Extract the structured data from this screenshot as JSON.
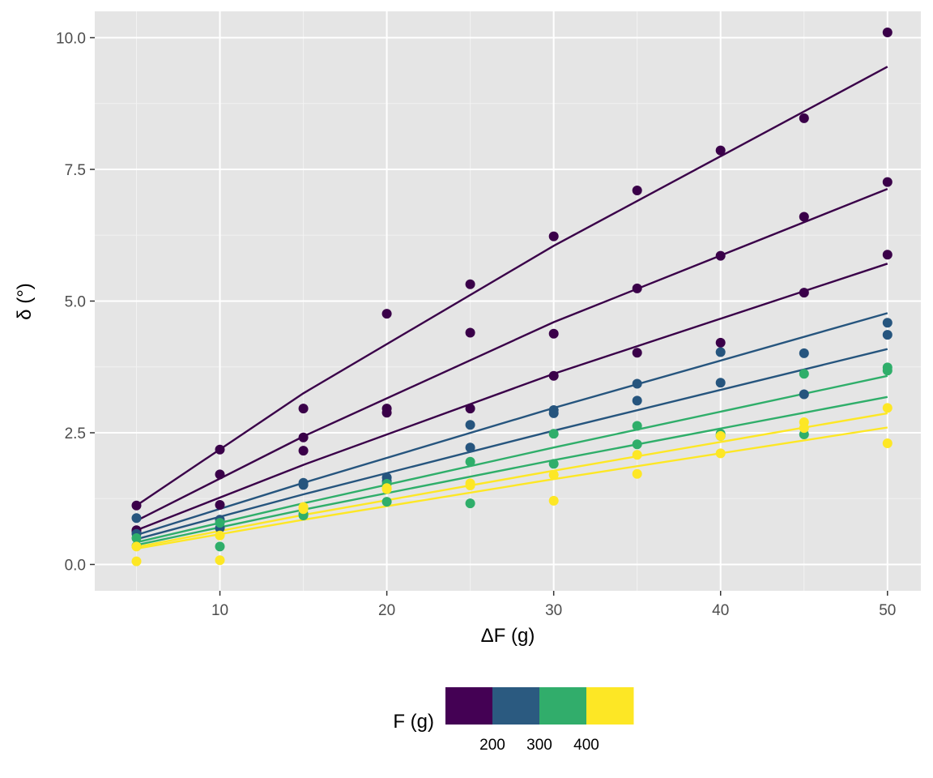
{
  "chart_data": {
    "type": "scatter",
    "xlabel": "ΔF (g)",
    "ylabel": "δ (°)",
    "xlim": [
      2.5,
      52
    ],
    "ylim": [
      -0.5,
      10.5
    ],
    "x_ticks": [
      10,
      20,
      30,
      40,
      50
    ],
    "y_ticks": [
      0.0,
      2.5,
      5.0,
      7.5,
      10.0
    ],
    "x_tick_labels": [
      "10",
      "20",
      "30",
      "40",
      "50"
    ],
    "y_tick_labels": [
      "0.0",
      "2.5",
      "5.0",
      "7.5",
      "10.0"
    ],
    "grid": true,
    "background": "#e5e5e5",
    "legend": {
      "position": "bottom",
      "title": "F (g)",
      "type": "colorbar-binned",
      "breaks": [
        "200",
        "300",
        "400"
      ],
      "colors": [
        "#440154",
        "#2b5a80",
        "#31ad6b",
        "#fde725"
      ]
    },
    "x": [
      5,
      10,
      15,
      20,
      25,
      30,
      35,
      40,
      45,
      50
    ],
    "series": [
      {
        "color": "#3a0049",
        "points": [
          1.12,
          2.18,
          2.96,
          4.76,
          5.32,
          6.23,
          7.1,
          7.86,
          8.47,
          10.1
        ],
        "fit": [
          [
            5,
            1.12
          ],
          [
            15,
            3.25
          ],
          [
            30,
            6.05
          ],
          [
            50,
            9.45
          ]
        ]
      },
      {
        "color": "#3a0049",
        "points": [
          0.63,
          1.71,
          2.41,
          2.96,
          4.4,
          4.38,
          5.24,
          5.86,
          6.6,
          7.26
        ],
        "fit": [
          [
            5,
            0.83
          ],
          [
            15,
            2.43
          ],
          [
            30,
            4.6
          ],
          [
            50,
            7.13
          ]
        ]
      },
      {
        "color": "#3a0049",
        "points": [
          0.65,
          1.13,
          2.16,
          2.88,
          2.96,
          3.58,
          4.02,
          4.21,
          5.16,
          5.88
        ],
        "fit": [
          [
            5,
            0.65
          ],
          [
            15,
            1.89
          ],
          [
            30,
            3.62
          ],
          [
            50,
            5.71
          ]
        ]
      },
      {
        "color": "#26557e",
        "points": [
          0.88,
          0.85,
          1.55,
          1.65,
          2.65,
          2.93,
          3.43,
          4.03,
          4.01,
          4.59
        ],
        "fit": [
          [
            5,
            0.56
          ],
          [
            15,
            1.55
          ],
          [
            30,
            2.97
          ],
          [
            50,
            4.77
          ]
        ]
      },
      {
        "color": "#26557e",
        "points": [
          0.58,
          0.69,
          1.51,
          1.58,
          2.22,
          2.87,
          3.11,
          3.45,
          3.23,
          4.36
        ],
        "fit": [
          [
            5,
            0.48
          ],
          [
            15,
            1.33
          ],
          [
            30,
            2.54
          ],
          [
            50,
            4.09
          ]
        ]
      },
      {
        "color": "#2fae6a",
        "points": [
          0.5,
          0.79,
          0.93,
          1.53,
          1.95,
          2.48,
          2.63,
          2.48,
          3.62,
          3.74
        ],
        "fit": [
          [
            5,
            0.42
          ],
          [
            15,
            1.16
          ],
          [
            30,
            2.22
          ],
          [
            50,
            3.58
          ]
        ]
      },
      {
        "color": "#2fae6a",
        "points": [
          0.35,
          0.34,
          0.96,
          1.19,
          1.16,
          1.91,
          2.28,
          2.44,
          2.47,
          3.68
        ],
        "fit": [
          [
            5,
            0.37
          ],
          [
            15,
            1.04
          ],
          [
            30,
            1.98
          ],
          [
            50,
            3.18
          ]
        ]
      },
      {
        "color": "#fde725",
        "points": [
          0.34,
          0.55,
          1.09,
          1.45,
          1.54,
          1.7,
          2.08,
          2.44,
          2.7,
          2.97
        ],
        "fit": [
          [
            5,
            0.33
          ],
          [
            15,
            0.94
          ],
          [
            30,
            1.78
          ],
          [
            50,
            2.87
          ]
        ]
      },
      {
        "color": "#fde725",
        "points": [
          0.06,
          0.08,
          1.05,
          1.43,
          1.5,
          1.21,
          1.72,
          2.11,
          2.59,
          2.3
        ],
        "fit": [
          [
            5,
            0.3
          ],
          [
            15,
            0.85
          ],
          [
            30,
            1.62
          ],
          [
            50,
            2.6
          ]
        ]
      }
    ]
  }
}
